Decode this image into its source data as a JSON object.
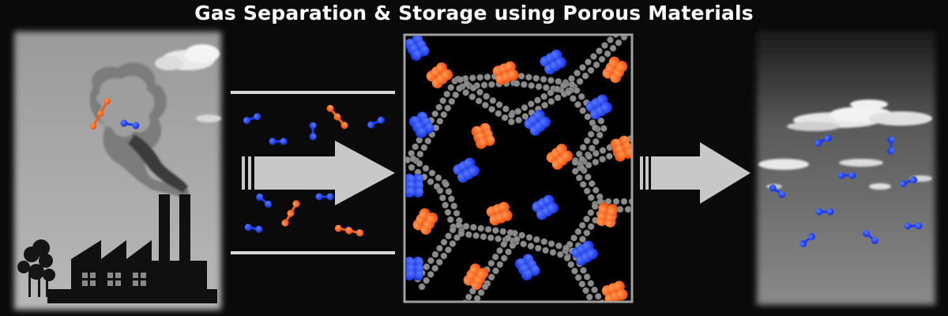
{
  "title": "Gas Separation & Storage using Porous Materials",
  "colors": {
    "background": "#0a0a0a",
    "title_text": "#ffffff",
    "co2_molecule": "#ff5a14",
    "n2_molecule": "#1a3cff",
    "framework": "#8c8c8c",
    "arrow": "#c8c8c8",
    "channel_lines": "#d9d9d9",
    "frame_border": "#a0a0a0"
  },
  "panels": {
    "left": {
      "scene": "factory-with-smoke-stacks",
      "sky": "grayscale"
    },
    "middle": {
      "scene": "porous-framework-with-adsorbed-molecules"
    },
    "right": {
      "scene": "clean-air-with-clouds",
      "sky": "grayscale"
    }
  },
  "icons": [
    "factory-icon",
    "smoke-cloud-icon",
    "tree-icon",
    "co2-molecule-icon",
    "n2-molecule-icon",
    "flow-arrow-icon"
  ]
}
